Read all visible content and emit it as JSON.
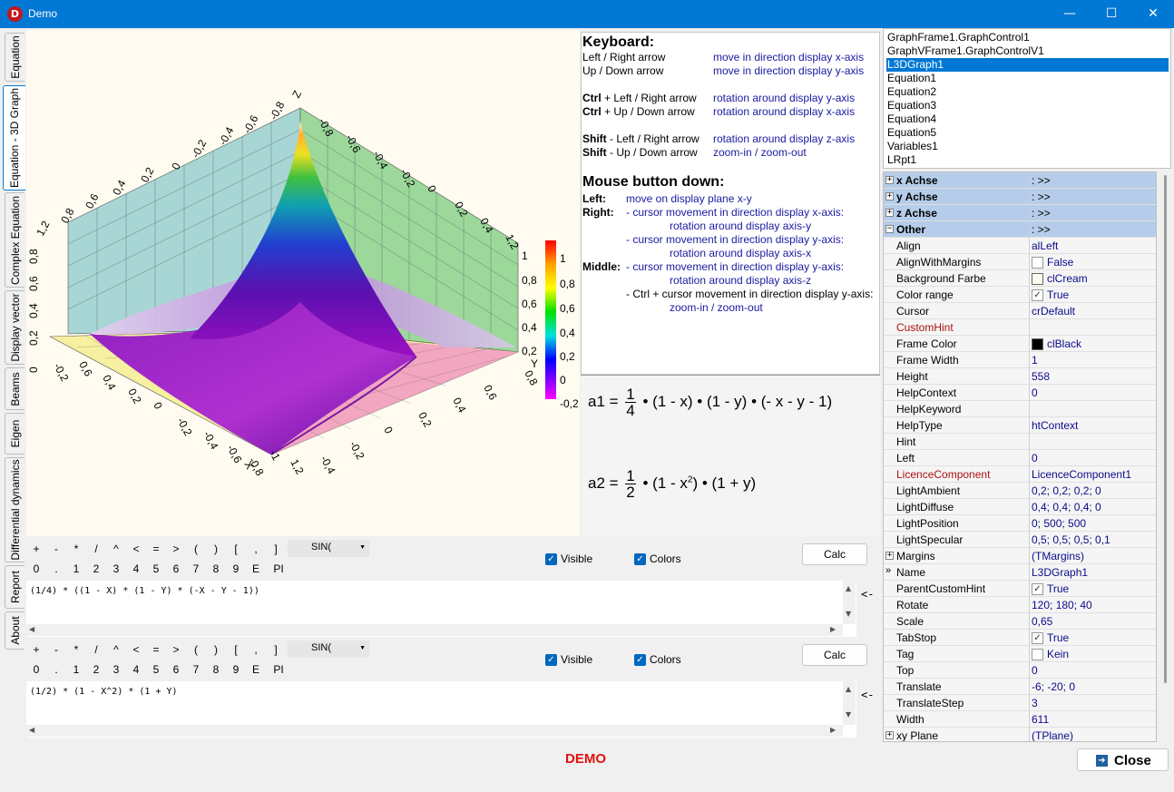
{
  "window": {
    "title": "Demo",
    "app_icon_letter": "D",
    "minimize": "—",
    "maximize": "☐",
    "close": "✕"
  },
  "tabs": [
    "Equation",
    "Equation - 3D Graph",
    "Complex Equation",
    "Display vector",
    "Beams",
    "Eigen",
    "Differential dynamics",
    "Report",
    "About"
  ],
  "graph": {
    "z_label": "Z",
    "y_label": "Y",
    "x_label": "X",
    "colorbar_ticks": [
      "1",
      "0,8",
      "0,6",
      "0,4",
      "0,2",
      "0",
      "-0,2"
    ]
  },
  "help": {
    "keyboard_title": "Keyboard:",
    "key_rows": [
      {
        "key_prefix": "",
        "key": "Left / Right arrow",
        "action": "move in direction display x-axis"
      },
      {
        "key_prefix": "",
        "key": "Up / Down arrow",
        "action": "move in direction display y-axis"
      },
      {
        "key_prefix": "Ctrl",
        "key": " + Left / Right arrow",
        "action": "rotation around display y-axis"
      },
      {
        "key_prefix": "Ctrl",
        "key": " + Up / Down arrow",
        "action": "rotation around display x-axis"
      },
      {
        "key_prefix": "Shift",
        "key": " - Left / Right arrow",
        "action": "rotation around display z-axis"
      },
      {
        "key_prefix": "Shift",
        "key": " - Up / Down arrow",
        "action": "zoom-in / zoom-out"
      }
    ],
    "mouse_title": "Mouse button down:",
    "left_label": "Left:",
    "left_text": "move on display plane x-y",
    "right_label": "Right:",
    "right_lines": [
      "- cursor movement in direction display x-axis:",
      "rotation around display axis-y",
      "- cursor movement in direction display y-axis:",
      "rotation around display axis-x"
    ],
    "middle_label": "Middle:",
    "middle_lines": [
      "- cursor movement in direction display y-axis:",
      "rotation around display axis-z"
    ],
    "middle_ctrl": "- Ctrl",
    "middle_ctrl_rest": " + cursor movement in direction display y-axis:",
    "middle_last": "zoom-in / zoom-out"
  },
  "equations": {
    "a1": {
      "lhs": "a1 =",
      "num": "1",
      "den": "4",
      "rhs": "• (1 - x) • (1 - y) • (- x - y - 1)"
    },
    "a2": {
      "lhs": "a2 =",
      "num": "1",
      "den": "2",
      "rhs_a": "• (1 - x",
      "sup": "2",
      "rhs_b": ") • (1 + y)"
    }
  },
  "keypad": {
    "row1": [
      "+",
      "-",
      "*",
      "/",
      "^",
      "<",
      "=",
      ">",
      "(",
      ")",
      "[",
      ",",
      "]"
    ],
    "row2": [
      "0",
      ".",
      "1",
      "2",
      "3",
      "4",
      "5",
      "6",
      "7",
      "8",
      "9",
      "E",
      "PI"
    ],
    "function_select": "SIN(",
    "visible_label": "Visible",
    "colors_label": "Colors",
    "calc_label": "Calc"
  },
  "editors": {
    "editor1": "(1/4) * ((1 - X) * (1 - Y) * (-X - Y - 1))",
    "editor2": "(1/2) * (1 - X^2) * (1 + Y)",
    "insert_arrow": "<-"
  },
  "components": [
    "GraphFrame1.GraphControl1",
    "GraphVFrame1.GraphControlV1",
    "L3DGraph1",
    "Equation1",
    "Equation2",
    "Equation3",
    "Equation4",
    "Equation5",
    "Variables1",
    "LRpt1"
  ],
  "selected_component": "L3DGraph1",
  "inspector": [
    {
      "name": "x Achse",
      "value": ": >>",
      "kind": "cat",
      "expand": "+"
    },
    {
      "name": "y Achse",
      "value": ": >>",
      "kind": "cat",
      "expand": "+"
    },
    {
      "name": "z Achse",
      "value": ": >>",
      "kind": "cat",
      "expand": "+"
    },
    {
      "name": "Other",
      "value": ": >>",
      "kind": "cat",
      "expand": "−"
    },
    {
      "name": "Align",
      "value": "alLeft"
    },
    {
      "name": "AlignWithMargins",
      "value": "False",
      "check": "empty"
    },
    {
      "name": "Background Farbe",
      "value": "clCream",
      "color": "#fffbf0"
    },
    {
      "name": "Color range",
      "value": "True",
      "check": "checked"
    },
    {
      "name": "Cursor",
      "value": "crDefault"
    },
    {
      "name": "CustomHint",
      "value": "",
      "red": true
    },
    {
      "name": "Frame Color",
      "value": "clBlack",
      "color": "#000000"
    },
    {
      "name": "Frame Width",
      "value": "1"
    },
    {
      "name": "Height",
      "value": "558"
    },
    {
      "name": "HelpContext",
      "value": "0"
    },
    {
      "name": "HelpKeyword",
      "value": ""
    },
    {
      "name": "HelpType",
      "value": "htContext"
    },
    {
      "name": "Hint",
      "value": ""
    },
    {
      "name": "Left",
      "value": "0"
    },
    {
      "name": "LicenceComponent",
      "value": "LicenceComponent1",
      "red": true
    },
    {
      "name": "LightAmbient",
      "value": "0,2; 0,2; 0,2; 0"
    },
    {
      "name": "LightDiffuse",
      "value": "0,4; 0,4; 0,4; 0"
    },
    {
      "name": "LightPosition",
      "value": "0; 500; 500"
    },
    {
      "name": "LightSpecular",
      "value": "0,5; 0,5; 0,5; 0,1"
    },
    {
      "name": "Margins",
      "value": "(TMargins)",
      "expand": "+"
    },
    {
      "name": "Name",
      "value": "L3DGraph1",
      "marker": "»"
    },
    {
      "name": "ParentCustomHint",
      "value": "True",
      "check": "checked"
    },
    {
      "name": "Rotate",
      "value": "120; 180; 40"
    },
    {
      "name": "Scale",
      "value": "0,65"
    },
    {
      "name": "TabStop",
      "value": "True",
      "check": "checked"
    },
    {
      "name": "Tag",
      "value": "Kein",
      "check": "empty"
    },
    {
      "name": "Top",
      "value": "0"
    },
    {
      "name": "Translate",
      "value": "-6; -20; 0"
    },
    {
      "name": "TranslateStep",
      "value": "3"
    },
    {
      "name": "Width",
      "value": "611"
    },
    {
      "name": "xy Plane",
      "value": "(TPlane)",
      "expand": "+"
    }
  ],
  "footer": {
    "demo_label": "DEMO",
    "close_label": "Close"
  }
}
